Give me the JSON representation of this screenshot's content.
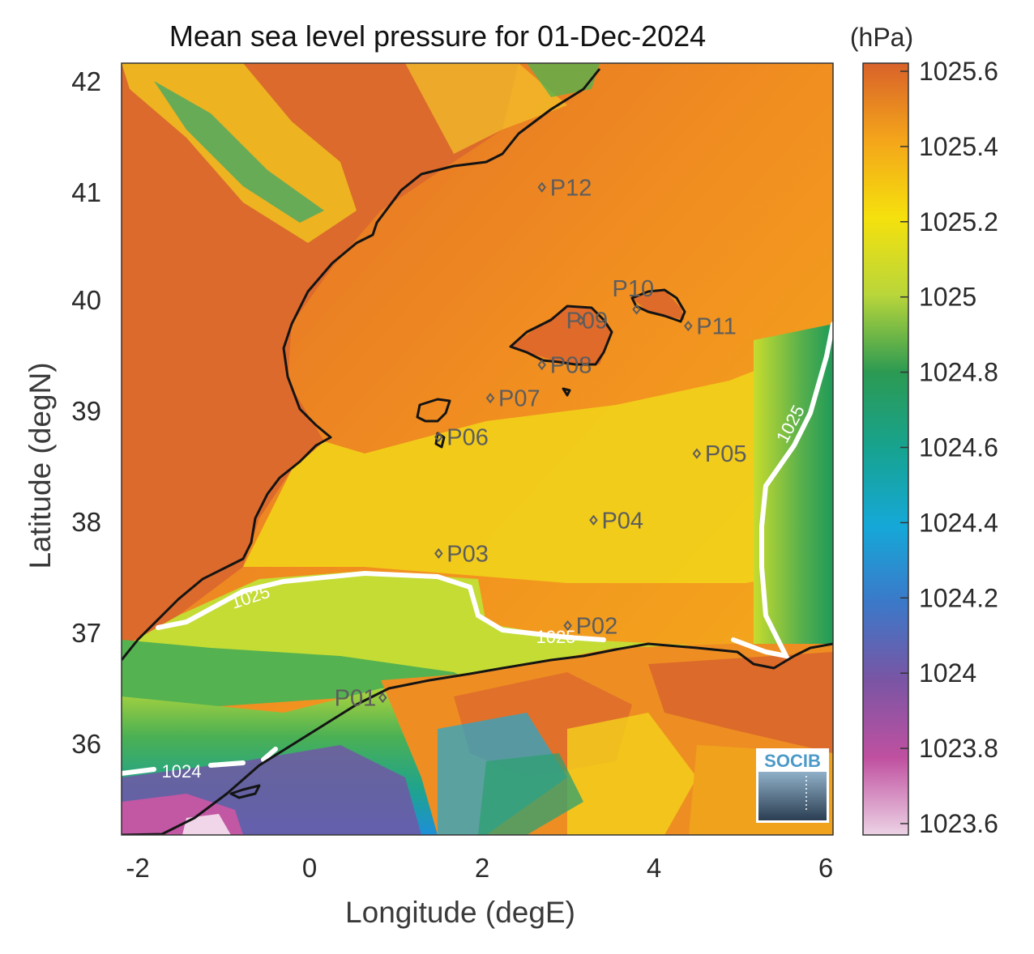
{
  "title": "Mean sea level pressure for 01-Dec-2024",
  "x_axis_label": "Longitude (degE)",
  "y_axis_label": "Latitude (degN)",
  "x_ticks": [
    "-2",
    "0",
    "2",
    "4",
    "6"
  ],
  "y_ticks": [
    "36",
    "37",
    "38",
    "39",
    "40",
    "41",
    "42"
  ],
  "colorbar": {
    "unit": "(hPa)",
    "ticks": [
      "1025.6",
      "1025.4",
      "1025.2",
      "1025",
      "1024.8",
      "1024.6",
      "1024.4",
      "1024.2",
      "1024",
      "1023.8",
      "1023.6"
    ]
  },
  "stations": [
    {
      "id": "P01",
      "lon": 0.85,
      "lat": 36.5
    },
    {
      "id": "P02",
      "lon": 3.0,
      "lat": 37.15
    },
    {
      "id": "P03",
      "lon": 1.5,
      "lat": 37.8
    },
    {
      "id": "P04",
      "lon": 3.3,
      "lat": 38.1
    },
    {
      "id": "P05",
      "lon": 4.5,
      "lat": 38.7
    },
    {
      "id": "P06",
      "lon": 1.5,
      "lat": 38.85
    },
    {
      "id": "P07",
      "lon": 2.1,
      "lat": 39.2
    },
    {
      "id": "P08",
      "lon": 2.7,
      "lat": 39.5
    },
    {
      "id": "P09",
      "lon": 3.15,
      "lat": 39.9
    },
    {
      "id": "P10",
      "lon": 3.8,
      "lat": 40.0
    },
    {
      "id": "P11",
      "lon": 4.4,
      "lat": 39.85
    },
    {
      "id": "P12",
      "lon": 2.7,
      "lat": 41.1
    }
  ],
  "contours": [
    {
      "value": "1025",
      "label": "1025"
    },
    {
      "value": "1025",
      "label": "1025"
    },
    {
      "value": "1025",
      "label": "1025"
    },
    {
      "value": "1024",
      "label": "1024"
    }
  ],
  "logo": {
    "text": "SOCIB"
  },
  "colors": {
    "high": "#d9622b",
    "mid_high": "#f3a21b",
    "yellow": "#f0df0f",
    "mid": "#bfdc3a",
    "green": "#2b9a5a",
    "teal": "#21a9b3",
    "blue": "#1f8fd8",
    "purple": "#7b5ea7",
    "low": "#e3c3dc",
    "contour": "#ffffff",
    "coast": "#141414"
  }
}
